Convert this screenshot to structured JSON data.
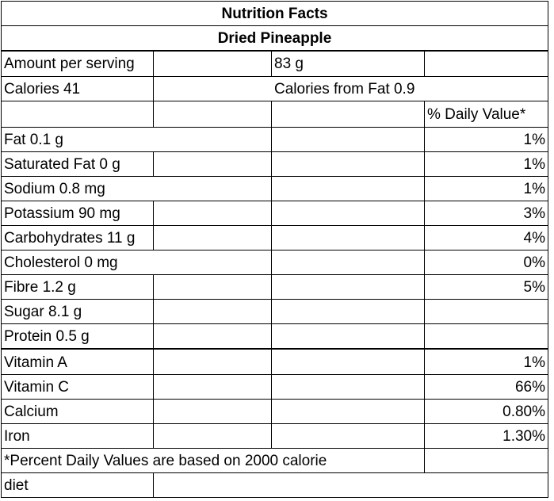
{
  "label": {
    "title": "Nutrition Facts",
    "subtitle": "Dried Pineapple",
    "serving": {
      "label": "Amount per serving",
      "value": "83 g"
    },
    "calories": {
      "label": "Calories 41",
      "fat_calories": "Calories from Fat 0.9"
    },
    "daily_value_header": "% Daily Value*",
    "nutrients": [
      {
        "name": "Fat 0.1 g",
        "dv": "1%"
      },
      {
        "name": "Saturated Fat 0 g",
        "dv": "1%"
      },
      {
        "name": "Sodium 0.8 mg",
        "dv": "1%"
      },
      {
        "name": "Potassium 90 mg",
        "dv": "3%"
      },
      {
        "name": "Carbohydrates 11 g",
        "dv": "4%"
      },
      {
        "name": "Cholesterol 0 mg",
        "dv": "0%"
      },
      {
        "name": "Fibre 1.2 g",
        "dv": "5%"
      },
      {
        "name": "Sugar 8.1 g",
        "dv": ""
      },
      {
        "name": "Protein 0.5 g",
        "dv": ""
      },
      {
        "name": "Vitamin A",
        "dv": "1%"
      },
      {
        "name": "Vitamin C",
        "dv": "66%"
      },
      {
        "name": "Calcium",
        "dv": "0.80%"
      },
      {
        "name": "Iron",
        "dv": "1.30%"
      }
    ],
    "footnote": {
      "line1": "*Percent Daily Values are based on 2000 calorie",
      "line2": "diet"
    }
  }
}
